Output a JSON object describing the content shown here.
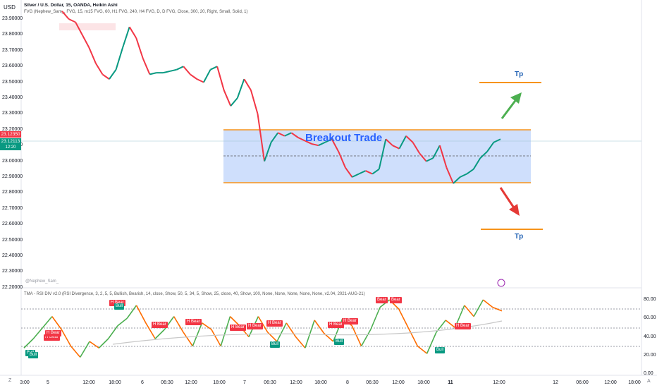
{
  "header": {
    "currency": "USD",
    "symbol_line": "Silver / U.S. Dollar, 15, OANDA, Heikin Ashi",
    "indicator_line": "FVG (Nephew_Sam_, FVG, 15, m15 FVG, 60, H1 FVG, 240, H4 FVG, D, D FVG, Close, 300, 20, Right, Small, Solid, 1)"
  },
  "price_axis": {
    "ticks": [
      "23.90000",
      "23.80000",
      "23.70000",
      "23.60000",
      "23.50000",
      "23.40000",
      "23.30000",
      "23.20000",
      "23.10000",
      "23.00000",
      "22.90000",
      "22.80000",
      "22.70000",
      "22.60000",
      "22.50000",
      "22.40000",
      "22.30000",
      "22.20000"
    ],
    "marker_red": "23.12350",
    "marker_green": "23.12113",
    "marker_time": "12:20"
  },
  "annotations": {
    "breakout_label": "Breakout Trade",
    "tp_top": "Tp",
    "tp_bottom": "Tp",
    "watermark": "@Nephew_Sam_"
  },
  "rsi_panel": {
    "title": "TMA - RSI DIV v2.0 (RSI Divergence, 3, 2, 5, 5, Bullish, Bearish, 14, close, Show, 50, 5, 34, 5, Show, 25, close, 40, Show, 100, None, None, None, None, None, v2.04, 2021-AUG-21)",
    "ticks": [
      "80.00",
      "60.00",
      "40.00",
      "20.00",
      "0.00"
    ],
    "tags": [
      {
        "t": "H Bear",
        "c": "#f23645"
      },
      {
        "t": "H Bear",
        "c": "#f23645"
      },
      {
        "t": "H Bear",
        "c": "#f23645"
      },
      {
        "t": "Bear",
        "c": "#f23645"
      },
      {
        "t": "H Bear",
        "c": "#f23645"
      },
      {
        "t": "H Bear",
        "c": "#f23645"
      },
      {
        "t": "H Bear",
        "c": "#f23645"
      },
      {
        "t": "H Bear",
        "c": "#f23645"
      },
      {
        "t": "H Bear",
        "c": "#f23645"
      },
      {
        "t": "H Bear",
        "c": "#f23645"
      },
      {
        "t": "H Bear",
        "c": "#f23645"
      },
      {
        "t": "Bear",
        "c": "#f23645"
      },
      {
        "t": "H Bear",
        "c": "#f23645"
      },
      {
        "t": "Bull",
        "c": "#089981"
      },
      {
        "t": "Bull",
        "c": "#089981"
      },
      {
        "t": "Bull",
        "c": "#089981"
      },
      {
        "t": "Bull",
        "c": "#089981"
      },
      {
        "t": "Bull",
        "c": "#089981"
      },
      {
        "t": "Bull",
        "c": "#089981"
      }
    ]
  },
  "time_axis": {
    "labels": [
      "3:00",
      "5",
      "12:00",
      "18:00",
      "6",
      "06:30",
      "12:00",
      "18:00",
      "7",
      "06:30",
      "12:00",
      "18:00",
      "8",
      "06:30",
      "12:00",
      "18:00",
      "11",
      "12:00",
      "12",
      "06:00",
      "12:00",
      "18:00"
    ],
    "corner_left": "Z",
    "corner_right": "A"
  },
  "chart_data": {
    "type": "line",
    "title": "Silver / U.S. Dollar, 15, OANDA, Heikin Ashi",
    "ylim": [
      22.2,
      23.95
    ],
    "breakout_box": {
      "top": 23.2,
      "bottom": 22.86
    },
    "take_profit_levels": [
      23.5,
      22.56
    ],
    "last_price": 23.1235,
    "price_path": [
      23.95,
      23.9,
      23.88,
      23.8,
      23.72,
      23.62,
      23.55,
      23.52,
      23.58,
      23.72,
      23.85,
      23.78,
      23.65,
      23.55,
      23.56,
      23.56,
      23.57,
      23.58,
      23.6,
      23.55,
      23.52,
      23.5,
      23.58,
      23.6,
      23.45,
      23.35,
      23.4,
      23.52,
      23.45,
      23.3,
      23.0,
      23.12,
      23.18,
      23.16,
      23.18,
      23.15,
      23.13,
      23.11,
      23.1,
      23.12,
      23.14,
      23.06,
      22.96,
      22.9,
      22.92,
      22.94,
      22.92,
      22.95,
      23.14,
      23.1,
      23.08,
      23.16,
      23.12,
      23.05,
      23.0,
      23.02,
      23.1,
      22.96,
      22.86,
      22.9,
      22.92,
      22.95,
      23.02,
      23.06,
      23.12,
      23.14
    ],
    "rsi_ylim": [
      0,
      90
    ],
    "rsi_levels": [
      70,
      50,
      30
    ],
    "rsi_path": [
      28,
      38,
      50,
      62,
      48,
      30,
      18,
      35,
      28,
      38,
      52,
      60,
      74,
      55,
      38,
      48,
      62,
      45,
      30,
      55,
      48,
      30,
      62,
      52,
      40,
      62,
      45,
      35,
      55,
      40,
      28,
      58,
      44,
      35,
      60,
      52,
      30,
      48,
      72,
      80,
      70,
      50,
      30,
      22,
      45,
      58,
      50,
      74,
      62,
      80,
      72,
      68
    ]
  }
}
